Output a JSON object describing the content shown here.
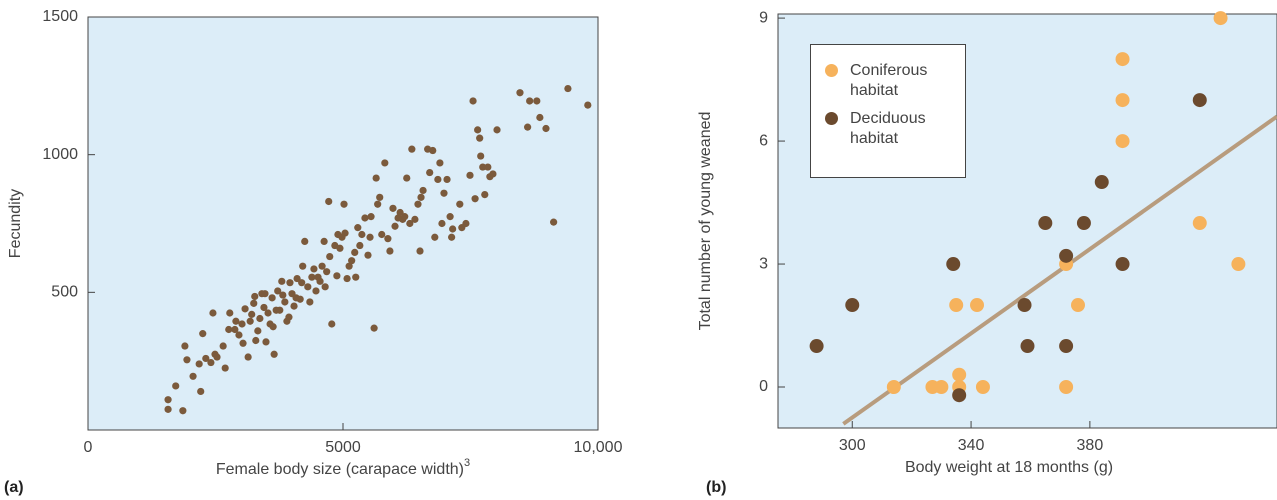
{
  "chart_data": [
    {
      "type": "scatter",
      "panel_label": "(a)",
      "x_label": "Female body size (carapace width)",
      "x_label_superscript": "3",
      "y_label": "Fecundity",
      "xlim": [
        0,
        10000
      ],
      "ylim": [
        0,
        1500
      ],
      "xticks": [
        0,
        5000,
        {
          "value": 10000,
          "label": "10,000"
        }
      ],
      "yticks": [
        500,
        1000,
        1500
      ],
      "series": [
        {
          "color": "#7b5a3c",
          "x": [
            1570,
            1570,
            1860,
            1720,
            1900,
            1940,
            2060,
            2180,
            2210,
            2250,
            2310,
            2410,
            2450,
            2490,
            2530,
            2650,
            2690,
            2760,
            2780,
            2880,
            2900,
            2960,
            3020,
            3040,
            3080,
            3140,
            3180,
            3210,
            3250,
            3270,
            3290,
            3330,
            3370,
            3410,
            3450,
            3470,
            3490,
            3530,
            3570,
            3610,
            3630,
            3650,
            3690,
            3720,
            3760,
            3800,
            3820,
            3860,
            3900,
            3940,
            3960,
            4000,
            4040,
            4080,
            4100,
            4160,
            4190,
            4210,
            4250,
            4310,
            4350,
            4390,
            4430,
            4470,
            4510,
            4550,
            4590,
            4630,
            4650,
            4680,
            4720,
            4740,
            4780,
            4840,
            4880,
            4900,
            4940,
            4980,
            5020,
            5040,
            5080,
            5120,
            5170,
            5230,
            5250,
            5290,
            5330,
            5370,
            5430,
            5490,
            5530,
            5550,
            5610,
            5650,
            5680,
            5720,
            5760,
            5820,
            5880,
            5920,
            5980,
            6020,
            6080,
            6120,
            6170,
            6210,
            6250,
            6310,
            6350,
            6410,
            6470,
            6510,
            6530,
            6570,
            6660,
            6700,
            6760,
            6800,
            6860,
            6900,
            6940,
            6980,
            7040,
            7100,
            7130,
            7150,
            7290,
            7330,
            7410,
            7490,
            7550,
            7590,
            7640,
            7680,
            7700,
            7740,
            7780,
            7840,
            7880,
            7940,
            8020,
            8470,
            8620,
            8660,
            8800,
            8860,
            8980,
            9130,
            9410,
            9800
          ],
          "values": [
            110,
            75,
            70,
            160,
            305,
            255,
            195,
            240,
            140,
            350,
            260,
            245,
            425,
            275,
            265,
            305,
            225,
            365,
            425,
            365,
            395,
            345,
            385,
            315,
            440,
            265,
            395,
            420,
            460,
            485,
            325,
            360,
            405,
            495,
            445,
            495,
            320,
            425,
            385,
            480,
            375,
            275,
            435,
            505,
            435,
            540,
            490,
            465,
            395,
            410,
            535,
            495,
            450,
            480,
            550,
            475,
            535,
            595,
            685,
            520,
            465,
            555,
            585,
            505,
            555,
            540,
            595,
            685,
            520,
            575,
            830,
            630,
            385,
            670,
            560,
            710,
            660,
            700,
            820,
            715,
            550,
            595,
            615,
            645,
            555,
            735,
            670,
            710,
            770,
            635,
            700,
            775,
            370,
            915,
            820,
            845,
            710,
            970,
            695,
            650,
            805,
            740,
            770,
            790,
            765,
            775,
            915,
            750,
            1020,
            765,
            820,
            650,
            845,
            870,
            1020,
            935,
            1015,
            700,
            910,
            970,
            750,
            860,
            910,
            775,
            700,
            730,
            820,
            735,
            750,
            925,
            1195,
            840,
            1090,
            1060,
            995,
            955,
            855,
            955,
            920,
            930,
            1090,
            1225,
            1100,
            1195,
            1195,
            1135,
            1095,
            755,
            1240,
            1180
          ]
        }
      ]
    },
    {
      "type": "scatter",
      "panel_label": "(b)",
      "x_label": "Body weight at 18 months (g)",
      "y_label": "Total number of young weaned",
      "xlim": [
        275,
        443
      ],
      "ylim": [
        -1,
        9.1
      ],
      "xticks": [
        300,
        340,
        380
      ],
      "yticks": [
        0,
        3,
        6,
        9
      ],
      "series": [
        {
          "name": "Coniferous habitat",
          "color": "#f6b25c",
          "x": [
            314,
            327,
            330,
            335,
            336,
            336,
            342,
            344,
            372,
            372,
            376,
            391,
            391,
            391,
            417,
            424,
            430
          ],
          "values": [
            0,
            0,
            0,
            2,
            0.3,
            0,
            2,
            0,
            3,
            0,
            2,
            8,
            7,
            6,
            4,
            9,
            3
          ]
        },
        {
          "name": "Deciduous habitat",
          "color": "#6b4a2e",
          "x": [
            288,
            300,
            334,
            336,
            358,
            359,
            365,
            372,
            372,
            378,
            384,
            391,
            417
          ],
          "values": [
            1,
            2,
            3,
            -0.2,
            2,
            1,
            4,
            3.2,
            1,
            4,
            5,
            3,
            7
          ]
        }
      ],
      "fit_line": {
        "color": "#b89c7e",
        "x": [
          297,
          443
        ],
        "y": [
          -0.9,
          6.6
        ]
      }
    }
  ]
}
